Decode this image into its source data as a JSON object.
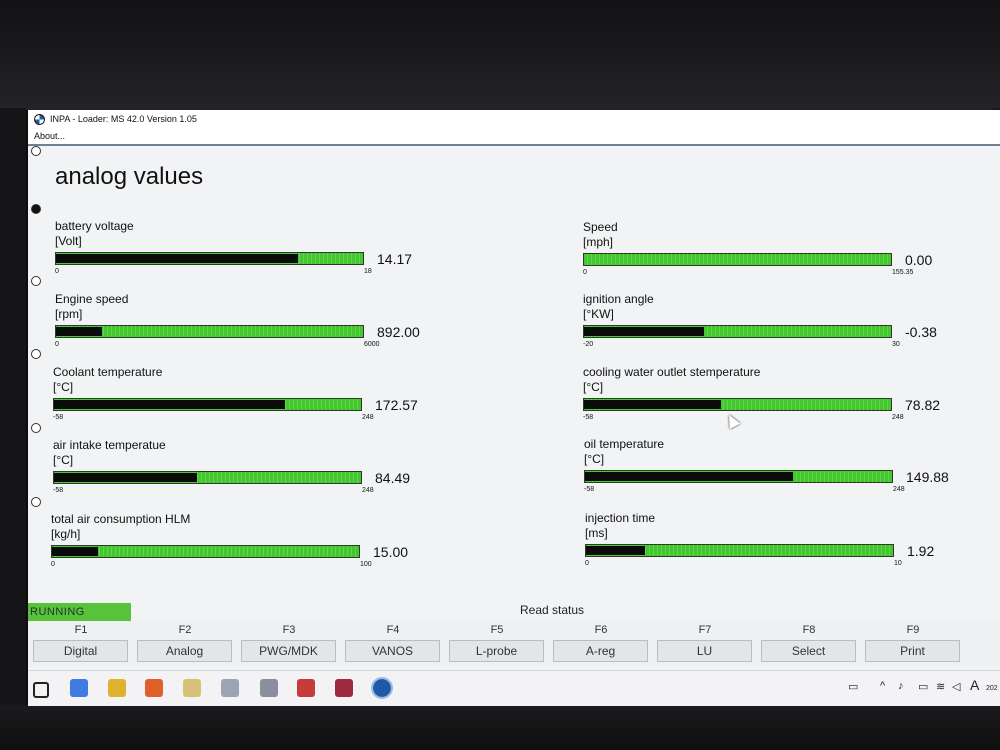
{
  "window": {
    "title": "INPA - Loader:  MS 42.0 Version 1.05",
    "menu_about": "About..."
  },
  "page_title": "analog values",
  "gauges": [
    {
      "name": "battery voltage",
      "unit": "[Volt]",
      "min": "0",
      "max": "18",
      "value": "14.17",
      "fill": 0.787
    },
    {
      "name": "Engine speed",
      "unit": "[rpm]",
      "min": "0",
      "max": "6000",
      "value": "892.00",
      "fill": 0.149
    },
    {
      "name": "Coolant temperature",
      "unit": "[°C]",
      "min": "-58",
      "max": "248",
      "value": "172.57",
      "fill": 0.753
    },
    {
      "name": "air intake temperatue",
      "unit": "[°C]",
      "min": "-58",
      "max": "248",
      "value": "84.49",
      "fill": 0.466
    },
    {
      "name": "total air consumption HLM",
      "unit": "[kg/h]",
      "min": "0",
      "max": "100",
      "value": "15.00",
      "fill": 0.15
    },
    {
      "name": "Speed",
      "unit": "[mph]",
      "min": "0",
      "max": "155.35",
      "value": "0.00",
      "fill": 0.0
    },
    {
      "name": "ignition angle",
      "unit": "[°KW]",
      "min": "-20",
      "max": "30",
      "value": "-0.38",
      "fill": 0.392
    },
    {
      "name": "cooling water outlet stemperature",
      "unit": "[°C]",
      "min": "-58",
      "max": "248",
      "value": "78.82",
      "fill": 0.447
    },
    {
      "name": "oil temperature",
      "unit": "[°C]",
      "min": "-58",
      "max": "248",
      "value": "149.88",
      "fill": 0.679
    },
    {
      "name": "injection time",
      "unit": "[ms]",
      "min": "0",
      "max": "10",
      "value": "1.92",
      "fill": 0.192
    }
  ],
  "status": {
    "running": "RUNNING",
    "read_status": "Read status"
  },
  "fkeys": [
    {
      "key": "F1",
      "label": "Digital"
    },
    {
      "key": "F2",
      "label": "Analog"
    },
    {
      "key": "F3",
      "label": "PWG/MDK"
    },
    {
      "key": "F4",
      "label": "VANOS"
    },
    {
      "key": "F5",
      "label": "L-probe"
    },
    {
      "key": "F6",
      "label": "A-reg"
    },
    {
      "key": "F7",
      "label": "LU"
    },
    {
      "key": "F8",
      "label": "Select"
    },
    {
      "key": "F9",
      "label": "Print"
    }
  ],
  "taskbar": {
    "icons": [
      "windows-start-icon",
      "copilot-icon",
      "file-explorer-icon",
      "firefox-icon",
      "notepad-icon",
      "editor-icon",
      "tools-icon",
      "calculator-icon",
      "media-icon",
      "bmw-app-icon"
    ],
    "tray_language": "A",
    "tray_year": "202"
  },
  "colors": {
    "bar_green": "#43c62f",
    "bar_fill": "#0b0b0b",
    "running_green": "#58c23b"
  }
}
